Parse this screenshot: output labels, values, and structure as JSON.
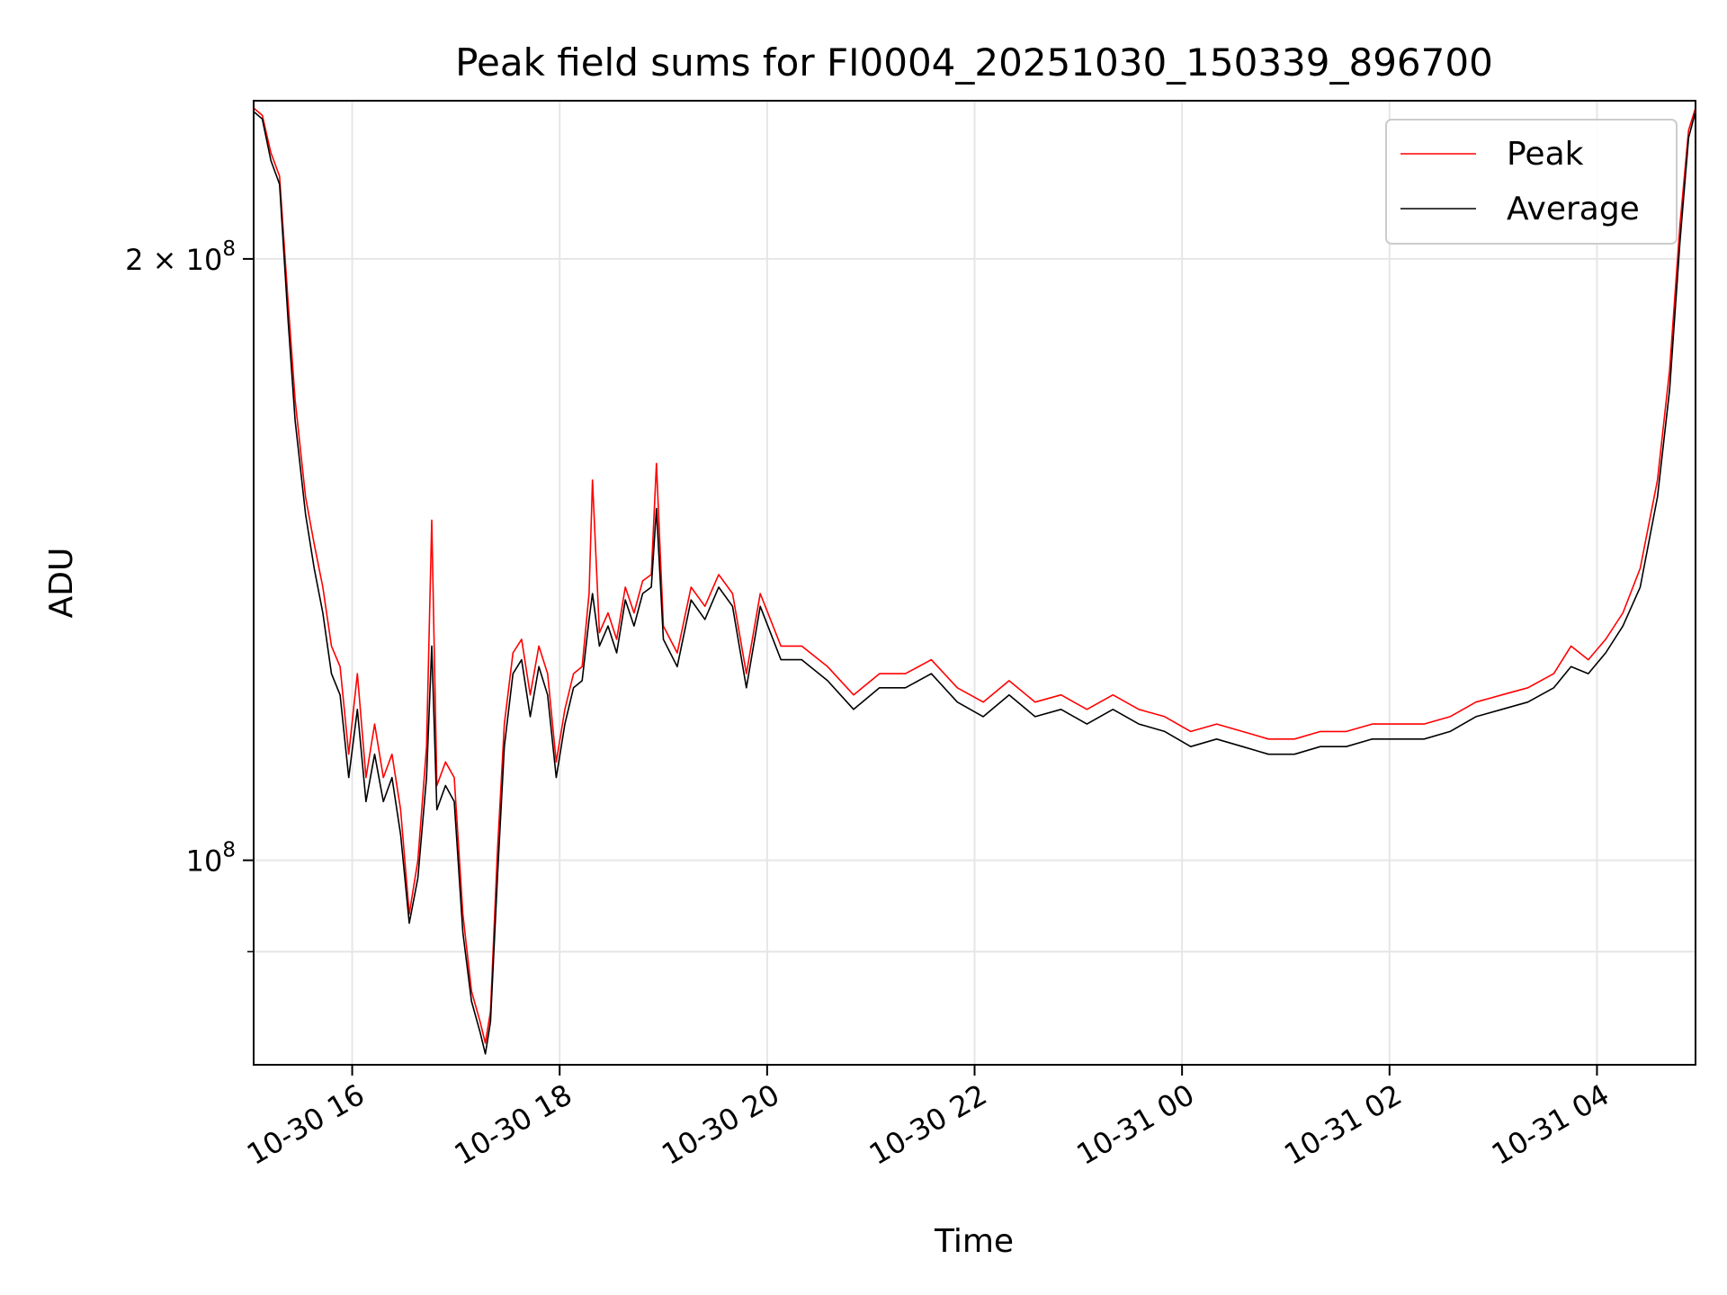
{
  "chart_data": {
    "type": "line",
    "title": "Peak field sums for FI0004_20251030_150339_896700",
    "xlabel": "Time",
    "ylabel": "ADU",
    "y_scale": "log",
    "grid": true,
    "legend_position": "top-right",
    "xlim": [
      "2025-10-30 15:03",
      "2025-10-31 04:57"
    ],
    "ylim": [
      79000000,
      240000000
    ],
    "x_ticks": [
      {
        "value": "2025-10-30 16:00",
        "label": "10-30 16"
      },
      {
        "value": "2025-10-30 18:00",
        "label": "10-30 18"
      },
      {
        "value": "2025-10-30 20:00",
        "label": "10-30 20"
      },
      {
        "value": "2025-10-30 22:00",
        "label": "10-30 22"
      },
      {
        "value": "2025-10-31 00:00",
        "label": "10-31 00"
      },
      {
        "value": "2025-10-31 02:00",
        "label": "10-31 02"
      },
      {
        "value": "2025-10-31 04:00",
        "label": "10-31 04"
      }
    ],
    "y_ticks": [
      {
        "value": 100000000,
        "base": "10",
        "exp": "8",
        "label": "10^8"
      },
      {
        "value": 200000000,
        "mant": "2 × ",
        "base": "10",
        "exp": "8",
        "label": "2×10^8"
      }
    ],
    "y_minor_ticks": [
      90000000
    ],
    "series": [
      {
        "name": "Peak",
        "color": "#ff0000",
        "points": [
          [
            "2025-10-30 15:03",
            238000000
          ],
          [
            "2025-10-30 15:08",
            236000000
          ],
          [
            "2025-10-30 15:13",
            226000000
          ],
          [
            "2025-10-30 15:18",
            220000000
          ],
          [
            "2025-10-30 15:23",
            190000000
          ],
          [
            "2025-10-30 15:27",
            170000000
          ],
          [
            "2025-10-30 15:33",
            152000000
          ],
          [
            "2025-10-30 15:38",
            144000000
          ],
          [
            "2025-10-30 15:43",
            137000000
          ],
          [
            "2025-10-30 15:48",
            128000000
          ],
          [
            "2025-10-30 15:53",
            125000000
          ],
          [
            "2025-10-30 15:58",
            113000000
          ],
          [
            "2025-10-30 16:03",
            124000000
          ],
          [
            "2025-10-30 16:08",
            110000000
          ],
          [
            "2025-10-30 16:13",
            117000000
          ],
          [
            "2025-10-30 16:18",
            110000000
          ],
          [
            "2025-10-30 16:23",
            113000000
          ],
          [
            "2025-10-30 16:28",
            106000000
          ],
          [
            "2025-10-30 16:33",
            94000000
          ],
          [
            "2025-10-30 16:38",
            100000000
          ],
          [
            "2025-10-30 16:43",
            114000000
          ],
          [
            "2025-10-30 16:46",
            148000000
          ],
          [
            "2025-10-30 16:49",
            109000000
          ],
          [
            "2025-10-30 16:54",
            112000000
          ],
          [
            "2025-10-30 16:59",
            110000000
          ],
          [
            "2025-10-30 17:04",
            94000000
          ],
          [
            "2025-10-30 17:09",
            86000000
          ],
          [
            "2025-10-30 17:14",
            83000000
          ],
          [
            "2025-10-30 17:17",
            81000000
          ],
          [
            "2025-10-30 17:20",
            84000000
          ],
          [
            "2025-10-30 17:24",
            101000000
          ],
          [
            "2025-10-30 17:28",
            117000000
          ],
          [
            "2025-10-30 17:33",
            127000000
          ],
          [
            "2025-10-30 17:38",
            129000000
          ],
          [
            "2025-10-30 17:43",
            121000000
          ],
          [
            "2025-10-30 17:48",
            128000000
          ],
          [
            "2025-10-30 17:53",
            124000000
          ],
          [
            "2025-10-30 17:58",
            112000000
          ],
          [
            "2025-10-30 18:03",
            119000000
          ],
          [
            "2025-10-30 18:08",
            124000000
          ],
          [
            "2025-10-30 18:13",
            125000000
          ],
          [
            "2025-10-30 18:17",
            136000000
          ],
          [
            "2025-10-30 18:19",
            155000000
          ],
          [
            "2025-10-30 18:23",
            130000000
          ],
          [
            "2025-10-30 18:28",
            133000000
          ],
          [
            "2025-10-30 18:33",
            129000000
          ],
          [
            "2025-10-30 18:38",
            137000000
          ],
          [
            "2025-10-30 18:43",
            133000000
          ],
          [
            "2025-10-30 18:48",
            138000000
          ],
          [
            "2025-10-30 18:53",
            139000000
          ],
          [
            "2025-10-30 18:56",
            158000000
          ],
          [
            "2025-10-30 19:00",
            131000000
          ],
          [
            "2025-10-30 19:08",
            127000000
          ],
          [
            "2025-10-30 19:16",
            137000000
          ],
          [
            "2025-10-30 19:24",
            134000000
          ],
          [
            "2025-10-30 19:32",
            139000000
          ],
          [
            "2025-10-30 19:40",
            136000000
          ],
          [
            "2025-10-30 19:48",
            124000000
          ],
          [
            "2025-10-30 19:56",
            136000000
          ],
          [
            "2025-10-30 20:08",
            128000000
          ],
          [
            "2025-10-30 20:20",
            128000000
          ],
          [
            "2025-10-30 20:35",
            125000000
          ],
          [
            "2025-10-30 20:50",
            121000000
          ],
          [
            "2025-10-30 21:05",
            124000000
          ],
          [
            "2025-10-30 21:20",
            124000000
          ],
          [
            "2025-10-30 21:35",
            126000000
          ],
          [
            "2025-10-30 21:50",
            122000000
          ],
          [
            "2025-10-30 22:05",
            120000000
          ],
          [
            "2025-10-30 22:20",
            123000000
          ],
          [
            "2025-10-30 22:35",
            120000000
          ],
          [
            "2025-10-30 22:50",
            121000000
          ],
          [
            "2025-10-30 23:05",
            119000000
          ],
          [
            "2025-10-30 23:20",
            121000000
          ],
          [
            "2025-10-30 23:35",
            119000000
          ],
          [
            "2025-10-30 23:50",
            118000000
          ],
          [
            "2025-10-31 00:05",
            116000000
          ],
          [
            "2025-10-31 00:20",
            117000000
          ],
          [
            "2025-10-31 00:35",
            116000000
          ],
          [
            "2025-10-31 00:50",
            115000000
          ],
          [
            "2025-10-31 01:05",
            115000000
          ],
          [
            "2025-10-31 01:20",
            116000000
          ],
          [
            "2025-10-31 01:35",
            116000000
          ],
          [
            "2025-10-31 01:50",
            117000000
          ],
          [
            "2025-10-31 02:05",
            117000000
          ],
          [
            "2025-10-31 02:20",
            117000000
          ],
          [
            "2025-10-31 02:35",
            118000000
          ],
          [
            "2025-10-31 02:50",
            120000000
          ],
          [
            "2025-10-31 03:05",
            121000000
          ],
          [
            "2025-10-31 03:20",
            122000000
          ],
          [
            "2025-10-31 03:35",
            124000000
          ],
          [
            "2025-10-31 03:45",
            128000000
          ],
          [
            "2025-10-31 03:55",
            126000000
          ],
          [
            "2025-10-31 04:05",
            129000000
          ],
          [
            "2025-10-31 04:15",
            133000000
          ],
          [
            "2025-10-31 04:25",
            140000000
          ],
          [
            "2025-10-31 04:35",
            155000000
          ],
          [
            "2025-10-31 04:42",
            176000000
          ],
          [
            "2025-10-31 04:48",
            208000000
          ],
          [
            "2025-10-31 04:53",
            232000000
          ],
          [
            "2025-10-31 04:57",
            238000000
          ]
        ]
      },
      {
        "name": "Average",
        "color": "#000000",
        "points": [
          [
            "2025-10-30 15:03",
            237000000
          ],
          [
            "2025-10-30 15:08",
            235000000
          ],
          [
            "2025-10-30 15:13",
            224000000
          ],
          [
            "2025-10-30 15:18",
            218000000
          ],
          [
            "2025-10-30 15:23",
            186000000
          ],
          [
            "2025-10-30 15:27",
            166000000
          ],
          [
            "2025-10-30 15:33",
            149000000
          ],
          [
            "2025-10-30 15:38",
            140000000
          ],
          [
            "2025-10-30 15:43",
            133000000
          ],
          [
            "2025-10-30 15:48",
            124000000
          ],
          [
            "2025-10-30 15:53",
            121000000
          ],
          [
            "2025-10-30 15:58",
            110000000
          ],
          [
            "2025-10-30 16:03",
            119000000
          ],
          [
            "2025-10-30 16:08",
            107000000
          ],
          [
            "2025-10-30 16:13",
            113000000
          ],
          [
            "2025-10-30 16:18",
            107000000
          ],
          [
            "2025-10-30 16:23",
            110000000
          ],
          [
            "2025-10-30 16:28",
            103000000
          ],
          [
            "2025-10-30 16:33",
            93000000
          ],
          [
            "2025-10-30 16:38",
            98000000
          ],
          [
            "2025-10-30 16:43",
            110000000
          ],
          [
            "2025-10-30 16:46",
            128000000
          ],
          [
            "2025-10-30 16:49",
            106000000
          ],
          [
            "2025-10-30 16:54",
            109000000
          ],
          [
            "2025-10-30 16:59",
            107000000
          ],
          [
            "2025-10-30 17:04",
            92000000
          ],
          [
            "2025-10-30 17:09",
            85000000
          ],
          [
            "2025-10-30 17:14",
            82000000
          ],
          [
            "2025-10-30 17:17",
            80000000
          ],
          [
            "2025-10-30 17:20",
            83000000
          ],
          [
            "2025-10-30 17:24",
            98000000
          ],
          [
            "2025-10-30 17:28",
            114000000
          ],
          [
            "2025-10-30 17:33",
            124000000
          ],
          [
            "2025-10-30 17:38",
            126000000
          ],
          [
            "2025-10-30 17:43",
            118000000
          ],
          [
            "2025-10-30 17:48",
            125000000
          ],
          [
            "2025-10-30 17:53",
            121000000
          ],
          [
            "2025-10-30 17:58",
            110000000
          ],
          [
            "2025-10-30 18:03",
            117000000
          ],
          [
            "2025-10-30 18:08",
            122000000
          ],
          [
            "2025-10-30 18:13",
            123000000
          ],
          [
            "2025-10-30 18:17",
            132000000
          ],
          [
            "2025-10-30 18:19",
            136000000
          ],
          [
            "2025-10-30 18:23",
            128000000
          ],
          [
            "2025-10-30 18:28",
            131000000
          ],
          [
            "2025-10-30 18:33",
            127000000
          ],
          [
            "2025-10-30 18:38",
            135000000
          ],
          [
            "2025-10-30 18:43",
            131000000
          ],
          [
            "2025-10-30 18:48",
            136000000
          ],
          [
            "2025-10-30 18:53",
            137000000
          ],
          [
            "2025-10-30 18:56",
            150000000
          ],
          [
            "2025-10-30 19:00",
            129000000
          ],
          [
            "2025-10-30 19:08",
            125000000
          ],
          [
            "2025-10-30 19:16",
            135000000
          ],
          [
            "2025-10-30 19:24",
            132000000
          ],
          [
            "2025-10-30 19:32",
            137000000
          ],
          [
            "2025-10-30 19:40",
            134000000
          ],
          [
            "2025-10-30 19:48",
            122000000
          ],
          [
            "2025-10-30 19:56",
            134000000
          ],
          [
            "2025-10-30 20:08",
            126000000
          ],
          [
            "2025-10-30 20:20",
            126000000
          ],
          [
            "2025-10-30 20:35",
            123000000
          ],
          [
            "2025-10-30 20:50",
            119000000
          ],
          [
            "2025-10-30 21:05",
            122000000
          ],
          [
            "2025-10-30 21:20",
            122000000
          ],
          [
            "2025-10-30 21:35",
            124000000
          ],
          [
            "2025-10-30 21:50",
            120000000
          ],
          [
            "2025-10-30 22:05",
            118000000
          ],
          [
            "2025-10-30 22:20",
            121000000
          ],
          [
            "2025-10-30 22:35",
            118000000
          ],
          [
            "2025-10-30 22:50",
            119000000
          ],
          [
            "2025-10-30 23:05",
            117000000
          ],
          [
            "2025-10-30 23:20",
            119000000
          ],
          [
            "2025-10-30 23:35",
            117000000
          ],
          [
            "2025-10-30 23:50",
            116000000
          ],
          [
            "2025-10-31 00:05",
            114000000
          ],
          [
            "2025-10-31 00:20",
            115000000
          ],
          [
            "2025-10-31 00:35",
            114000000
          ],
          [
            "2025-10-31 00:50",
            113000000
          ],
          [
            "2025-10-31 01:05",
            113000000
          ],
          [
            "2025-10-31 01:20",
            114000000
          ],
          [
            "2025-10-31 01:35",
            114000000
          ],
          [
            "2025-10-31 01:50",
            115000000
          ],
          [
            "2025-10-31 02:05",
            115000000
          ],
          [
            "2025-10-31 02:20",
            115000000
          ],
          [
            "2025-10-31 02:35",
            116000000
          ],
          [
            "2025-10-31 02:50",
            118000000
          ],
          [
            "2025-10-31 03:05",
            119000000
          ],
          [
            "2025-10-31 03:20",
            120000000
          ],
          [
            "2025-10-31 03:35",
            122000000
          ],
          [
            "2025-10-31 03:45",
            125000000
          ],
          [
            "2025-10-31 03:55",
            124000000
          ],
          [
            "2025-10-31 04:05",
            127000000
          ],
          [
            "2025-10-31 04:15",
            131000000
          ],
          [
            "2025-10-31 04:25",
            137000000
          ],
          [
            "2025-10-31 04:35",
            152000000
          ],
          [
            "2025-10-31 04:42",
            172000000
          ],
          [
            "2025-10-31 04:48",
            204000000
          ],
          [
            "2025-10-31 04:53",
            230000000
          ],
          [
            "2025-10-31 04:57",
            237000000
          ]
        ]
      }
    ]
  }
}
